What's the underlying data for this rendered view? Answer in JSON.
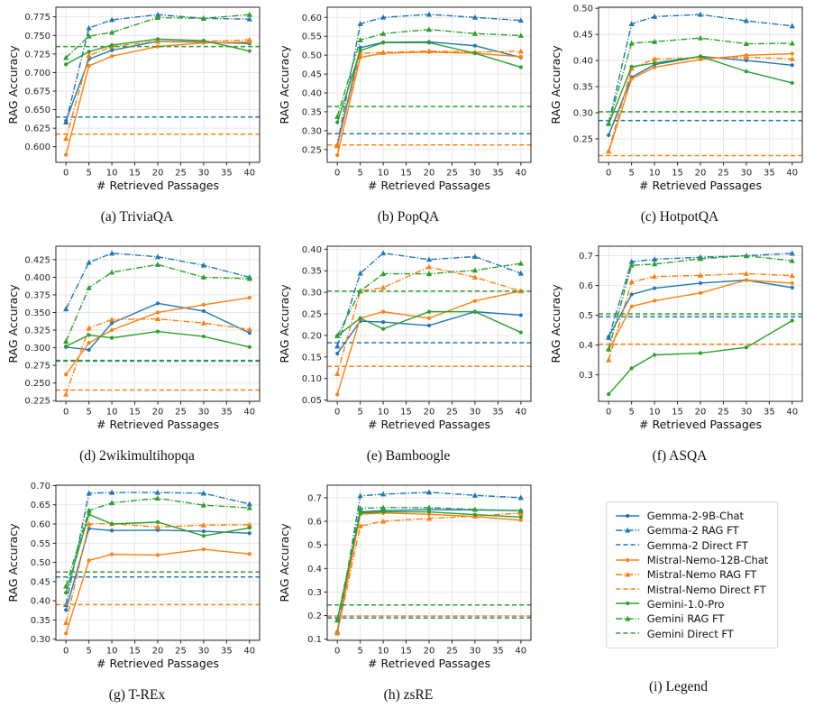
{
  "figure": {
    "xlabel": "# Retrieved Passages",
    "ylabel": "RAG Accuracy"
  },
  "colors": {
    "blue": "#1f77b4",
    "orange": "#ff7f0e",
    "green": "#2ca02c",
    "grid": "#e6e6e6",
    "axis": "#262626"
  },
  "series_defs": [
    {
      "name": "Gemma-2-9B-Chat",
      "color": "#1f77b4",
      "style": "solid",
      "marker": "dot"
    },
    {
      "name": "Gemma-2 RAG FT",
      "color": "#1f77b4",
      "style": "dashdot",
      "marker": "triangle"
    },
    {
      "name": "Gemma-2 Direct FT",
      "color": "#1f77b4",
      "style": "dashed",
      "marker": "none"
    },
    {
      "name": "Mistral-Nemo-12B-Chat",
      "color": "#ff7f0e",
      "style": "solid",
      "marker": "dot"
    },
    {
      "name": "Mistral-Nemo RAG FT",
      "color": "#ff7f0e",
      "style": "dashdot",
      "marker": "triangle"
    },
    {
      "name": "Mistral-Nemo Direct FT",
      "color": "#ff7f0e",
      "style": "dashed",
      "marker": "none"
    },
    {
      "name": "Gemini-1.0-Pro",
      "color": "#2ca02c",
      "style": "solid",
      "marker": "dot"
    },
    {
      "name": "Gemini RAG FT",
      "color": "#2ca02c",
      "style": "dashdot",
      "marker": "triangle"
    },
    {
      "name": "Gemini Direct FT",
      "color": "#2ca02c",
      "style": "dashed",
      "marker": "none"
    }
  ],
  "legend": {
    "caption": "(i) Legend"
  },
  "chart_data": [
    {
      "type": "line",
      "caption": "(a) TriviaQA",
      "xlabel": "# Retrieved Passages",
      "ylabel": "RAG Accuracy",
      "x": [
        0,
        5,
        10,
        20,
        30,
        40
      ],
      "xticks": [
        0,
        5,
        10,
        15,
        20,
        25,
        30,
        35,
        40
      ],
      "xlim": [
        -2.2,
        42.2
      ],
      "yticks": [
        0.6,
        0.625,
        0.65,
        0.675,
        0.7,
        0.725,
        0.75,
        0.775
      ],
      "ylim": [
        0.579,
        0.788
      ],
      "ydecimals": 3,
      "series": [
        {
          "name": "Gemma-2-9B-Chat",
          "values": [
            0.635,
            0.718,
            0.73,
            0.742,
            0.741,
            0.739
          ]
        },
        {
          "name": "Gemma-2 RAG FT",
          "values": [
            0.633,
            0.76,
            0.771,
            0.778,
            0.773,
            0.772
          ]
        },
        {
          "name": "Gemma-2 Direct FT",
          "baseline": 0.64
        },
        {
          "name": "Mistral-Nemo-12B-Chat",
          "values": [
            0.589,
            0.709,
            0.722,
            0.735,
            0.74,
            0.741
          ]
        },
        {
          "name": "Mistral-Nemo RAG FT",
          "values": [
            0.611,
            0.723,
            0.735,
            0.742,
            0.742,
            0.744
          ]
        },
        {
          "name": "Mistral-Nemo Direct FT",
          "baseline": 0.617
        },
        {
          "name": "Gemini-1.0-Pro",
          "values": [
            0.711,
            0.728,
            0.737,
            0.745,
            0.743,
            0.729
          ]
        },
        {
          "name": "Gemini RAG FT",
          "values": [
            0.72,
            0.749,
            0.754,
            0.774,
            0.773,
            0.778
          ]
        },
        {
          "name": "Gemini Direct FT",
          "baseline": 0.735
        }
      ]
    },
    {
      "type": "line",
      "caption": "(b) PopQA",
      "xlabel": "# Retrieved Passages",
      "ylabel": "RAG Accuracy",
      "x": [
        0,
        5,
        10,
        20,
        30,
        40
      ],
      "xticks": [
        0,
        5,
        10,
        15,
        20,
        25,
        30,
        35,
        40
      ],
      "xlim": [
        -2.2,
        42.2
      ],
      "yticks": [
        0.25,
        0.3,
        0.35,
        0.4,
        0.45,
        0.5,
        0.55,
        0.6
      ],
      "ylim": [
        0.216,
        0.627
      ],
      "ydecimals": 2,
      "series": [
        {
          "name": "Gemma-2-9B-Chat",
          "values": [
            0.26,
            0.52,
            0.534,
            0.535,
            0.525,
            0.494
          ]
        },
        {
          "name": "Gemma-2 RAG FT",
          "values": [
            0.262,
            0.583,
            0.6,
            0.608,
            0.6,
            0.592
          ]
        },
        {
          "name": "Gemma-2 Direct FT",
          "baseline": 0.292
        },
        {
          "name": "Mistral-Nemo-12B-Chat",
          "values": [
            0.235,
            0.494,
            0.505,
            0.508,
            0.505,
            0.496
          ]
        },
        {
          "name": "Mistral-Nemo RAG FT",
          "values": [
            0.259,
            0.505,
            0.507,
            0.511,
            0.508,
            0.51
          ]
        },
        {
          "name": "Mistral-Nemo Direct FT",
          "baseline": 0.262
        },
        {
          "name": "Gemini-1.0-Pro",
          "values": [
            0.322,
            0.512,
            0.533,
            0.533,
            0.505,
            0.468
          ]
        },
        {
          "name": "Gemini RAG FT",
          "values": [
            0.337,
            0.54,
            0.557,
            0.568,
            0.557,
            0.552
          ]
        },
        {
          "name": "Gemini Direct FT",
          "baseline": 0.364
        }
      ]
    },
    {
      "type": "line",
      "caption": "(c) HotpotQA",
      "xlabel": "# Retrieved Passages",
      "ylabel": "RAG Accuracy",
      "x": [
        0,
        5,
        10,
        20,
        30,
        40
      ],
      "xticks": [
        0,
        5,
        10,
        15,
        20,
        25,
        30,
        35,
        40
      ],
      "xlim": [
        -2.2,
        42.2
      ],
      "yticks": [
        0.25,
        0.3,
        0.35,
        0.4,
        0.45,
        0.5
      ],
      "ylim": [
        0.205,
        0.502
      ],
      "ydecimals": 2,
      "series": [
        {
          "name": "Gemma-2-9B-Chat",
          "values": [
            0.257,
            0.368,
            0.392,
            0.408,
            0.4,
            0.391
          ]
        },
        {
          "name": "Gemma-2 RAG FT",
          "values": [
            0.28,
            0.47,
            0.484,
            0.488,
            0.476,
            0.466
          ]
        },
        {
          "name": "Gemma-2 Direct FT",
          "baseline": 0.285
        },
        {
          "name": "Mistral-Nemo-12B-Chat",
          "values": [
            0.225,
            0.365,
            0.387,
            0.402,
            0.41,
            0.413
          ]
        },
        {
          "name": "Mistral-Nemo RAG FT",
          "values": [
            0.226,
            0.385,
            0.403,
            0.405,
            0.406,
            0.403
          ]
        },
        {
          "name": "Mistral-Nemo Direct FT",
          "baseline": 0.218
        },
        {
          "name": "Gemini-1.0-Pro",
          "values": [
            0.278,
            0.388,
            0.395,
            0.408,
            0.379,
            0.357
          ]
        },
        {
          "name": "Gemini RAG FT",
          "values": [
            0.279,
            0.433,
            0.436,
            0.443,
            0.432,
            0.433
          ]
        },
        {
          "name": "Gemini Direct FT",
          "baseline": 0.302
        }
      ]
    },
    {
      "type": "line",
      "caption": "(d) 2wikimultihopqa",
      "xlabel": "# Retrieved Passages",
      "ylabel": "RAG Accuracy",
      "x": [
        0,
        5,
        10,
        20,
        30,
        40
      ],
      "xticks": [
        0,
        5,
        10,
        15,
        20,
        25,
        30,
        35,
        40
      ],
      "xlim": [
        -2.2,
        42.2
      ],
      "yticks": [
        0.225,
        0.25,
        0.275,
        0.3,
        0.325,
        0.35,
        0.375,
        0.4,
        0.425
      ],
      "ylim": [
        0.224,
        0.444
      ],
      "ydecimals": 3,
      "series": [
        {
          "name": "Gemma-2-9B-Chat",
          "values": [
            0.301,
            0.297,
            0.335,
            0.363,
            0.352,
            0.321
          ]
        },
        {
          "name": "Gemma-2 RAG FT",
          "values": [
            0.355,
            0.421,
            0.434,
            0.429,
            0.417,
            0.4
          ]
        },
        {
          "name": "Gemma-2 Direct FT",
          "baseline": 0.281
        },
        {
          "name": "Mistral-Nemo-12B-Chat",
          "values": [
            0.262,
            0.307,
            0.325,
            0.35,
            0.361,
            0.371
          ]
        },
        {
          "name": "Mistral-Nemo RAG FT",
          "values": [
            0.234,
            0.328,
            0.34,
            0.341,
            0.335,
            0.326
          ]
        },
        {
          "name": "Mistral-Nemo Direct FT",
          "baseline": 0.24
        },
        {
          "name": "Gemini-1.0-Pro",
          "values": [
            0.302,
            0.318,
            0.314,
            0.323,
            0.316,
            0.301
          ]
        },
        {
          "name": "Gemini RAG FT",
          "values": [
            0.309,
            0.385,
            0.407,
            0.418,
            0.4,
            0.398
          ]
        },
        {
          "name": "Gemini Direct FT",
          "baseline": 0.282
        }
      ]
    },
    {
      "type": "line",
      "caption": "(e) Bamboogle",
      "xlabel": "# Retrieved Passages",
      "ylabel": "RAG Accuracy",
      "x": [
        0,
        5,
        10,
        20,
        30,
        40
      ],
      "xticks": [
        0,
        5,
        10,
        15,
        20,
        25,
        30,
        35,
        40
      ],
      "xlim": [
        -2.2,
        42.2
      ],
      "yticks": [
        0.05,
        0.1,
        0.15,
        0.2,
        0.25,
        0.3,
        0.35,
        0.4
      ],
      "ylim": [
        0.047,
        0.407
      ],
      "ydecimals": 2,
      "series": [
        {
          "name": "Gemma-2-9B-Chat",
          "values": [
            0.158,
            0.233,
            0.231,
            0.223,
            0.255,
            0.247
          ]
        },
        {
          "name": "Gemma-2 RAG FT",
          "values": [
            0.175,
            0.344,
            0.391,
            0.376,
            0.383,
            0.344
          ]
        },
        {
          "name": "Gemma-2 Direct FT",
          "baseline": 0.183
        },
        {
          "name": "Mistral-Nemo-12B-Chat",
          "values": [
            0.063,
            0.24,
            0.255,
            0.24,
            0.28,
            0.303
          ]
        },
        {
          "name": "Mistral-Nemo RAG FT",
          "values": [
            0.111,
            0.303,
            0.311,
            0.359,
            0.335,
            0.303
          ]
        },
        {
          "name": "Mistral-Nemo Direct FT",
          "baseline": 0.128
        },
        {
          "name": "Gemini-1.0-Pro",
          "values": [
            0.199,
            0.24,
            0.215,
            0.255,
            0.255,
            0.207
          ]
        },
        {
          "name": "Gemini RAG FT",
          "values": [
            0.199,
            0.303,
            0.343,
            0.343,
            0.351,
            0.367
          ]
        },
        {
          "name": "Gemini Direct FT",
          "baseline": 0.303
        }
      ]
    },
    {
      "type": "line",
      "caption": "(f) ASQA",
      "xlabel": "# Retrieved Passages",
      "ylabel": "RAG Accuracy",
      "x": [
        0,
        5,
        10,
        20,
        30,
        40
      ],
      "xticks": [
        0,
        5,
        10,
        15,
        20,
        25,
        30,
        35,
        40
      ],
      "xlim": [
        -2.2,
        42.2
      ],
      "yticks": [
        0.3,
        0.4,
        0.5,
        0.6,
        0.7
      ],
      "ylim": [
        0.211,
        0.732
      ],
      "ydecimals": 1,
      "series": [
        {
          "name": "Gemma-2-9B-Chat",
          "values": [
            0.428,
            0.57,
            0.591,
            0.608,
            0.618,
            0.593
          ]
        },
        {
          "name": "Gemma-2 RAG FT",
          "values": [
            0.425,
            0.68,
            0.688,
            0.695,
            0.7,
            0.708
          ]
        },
        {
          "name": "Gemma-2 Direct FT",
          "baseline": 0.495
        },
        {
          "name": "Mistral-Nemo-12B-Chat",
          "values": [
            0.383,
            0.53,
            0.549,
            0.575,
            0.618,
            0.608
          ]
        },
        {
          "name": "Mistral-Nemo RAG FT",
          "values": [
            0.35,
            0.612,
            0.63,
            0.634,
            0.64,
            0.633
          ]
        },
        {
          "name": "Mistral-Nemo Direct FT",
          "baseline": 0.403
        },
        {
          "name": "Gemini-1.0-Pro",
          "values": [
            0.235,
            0.322,
            0.367,
            0.373,
            0.392,
            0.482
          ]
        },
        {
          "name": "Gemini RAG FT",
          "values": [
            0.387,
            0.668,
            0.672,
            0.69,
            0.7,
            0.683
          ]
        },
        {
          "name": "Gemini Direct FT",
          "baseline": 0.505
        }
      ]
    },
    {
      "type": "line",
      "caption": "(g) T-REx",
      "xlabel": "# Retrieved Passages",
      "ylabel": "RAG Accuracy",
      "x": [
        0,
        5,
        10,
        20,
        30,
        40
      ],
      "xticks": [
        0,
        5,
        10,
        15,
        20,
        25,
        30,
        35,
        40
      ],
      "xlim": [
        -2.2,
        42.2
      ],
      "yticks": [
        0.3,
        0.35,
        0.4,
        0.45,
        0.5,
        0.55,
        0.6,
        0.65,
        0.7
      ],
      "ylim": [
        0.297,
        0.701
      ],
      "ydecimals": 2,
      "series": [
        {
          "name": "Gemma-2-9B-Chat",
          "values": [
            0.376,
            0.588,
            0.583,
            0.584,
            0.581,
            0.576
          ]
        },
        {
          "name": "Gemma-2 RAG FT",
          "values": [
            0.39,
            0.68,
            0.682,
            0.682,
            0.68,
            0.652
          ]
        },
        {
          "name": "Gemma-2 Direct FT",
          "baseline": 0.462
        },
        {
          "name": "Mistral-Nemo-12B-Chat",
          "values": [
            0.315,
            0.505,
            0.521,
            0.519,
            0.534,
            0.522
          ]
        },
        {
          "name": "Mistral-Nemo RAG FT",
          "values": [
            0.343,
            0.6,
            0.601,
            0.592,
            0.597,
            0.598
          ]
        },
        {
          "name": "Mistral-Nemo Direct FT",
          "baseline": 0.39
        },
        {
          "name": "Gemini-1.0-Pro",
          "values": [
            0.421,
            0.625,
            0.6,
            0.605,
            0.569,
            0.59
          ]
        },
        {
          "name": "Gemini RAG FT",
          "values": [
            0.438,
            0.635,
            0.655,
            0.667,
            0.649,
            0.642
          ]
        },
        {
          "name": "Gemini Direct FT",
          "baseline": 0.475
        }
      ]
    },
    {
      "type": "line",
      "caption": "(h) zsRE",
      "xlabel": "# Retrieved Passages",
      "ylabel": "RAG Accuracy",
      "x": [
        0,
        5,
        10,
        20,
        30,
        40
      ],
      "xticks": [
        0,
        5,
        10,
        15,
        20,
        25,
        30,
        35,
        40
      ],
      "xlim": [
        -2.2,
        42.2
      ],
      "yticks": [
        0.1,
        0.2,
        0.3,
        0.4,
        0.5,
        0.6,
        0.7
      ],
      "ylim": [
        0.095,
        0.753
      ],
      "ydecimals": 1,
      "series": [
        {
          "name": "Gemma-2-9B-Chat",
          "values": [
            0.13,
            0.64,
            0.645,
            0.65,
            0.648,
            0.645
          ]
        },
        {
          "name": "Gemma-2 RAG FT",
          "values": [
            0.132,
            0.708,
            0.715,
            0.723,
            0.71,
            0.7
          ]
        },
        {
          "name": "Gemma-2 Direct FT",
          "baseline": 0.19
        },
        {
          "name": "Mistral-Nemo-12B-Chat",
          "values": [
            0.125,
            0.63,
            0.635,
            0.63,
            0.62,
            0.605
          ]
        },
        {
          "name": "Mistral-Nemo RAG FT",
          "values": [
            0.125,
            0.58,
            0.6,
            0.612,
            0.622,
            0.635
          ]
        },
        {
          "name": "Mistral-Nemo Direct FT",
          "baseline": 0.198
        },
        {
          "name": "Gemini-1.0-Pro",
          "values": [
            0.18,
            0.635,
            0.64,
            0.64,
            0.628,
            0.618
          ]
        },
        {
          "name": "Gemini RAG FT",
          "values": [
            0.18,
            0.655,
            0.658,
            0.658,
            0.65,
            0.645
          ]
        },
        {
          "name": "Gemini Direct FT",
          "baseline": 0.245
        }
      ]
    }
  ]
}
